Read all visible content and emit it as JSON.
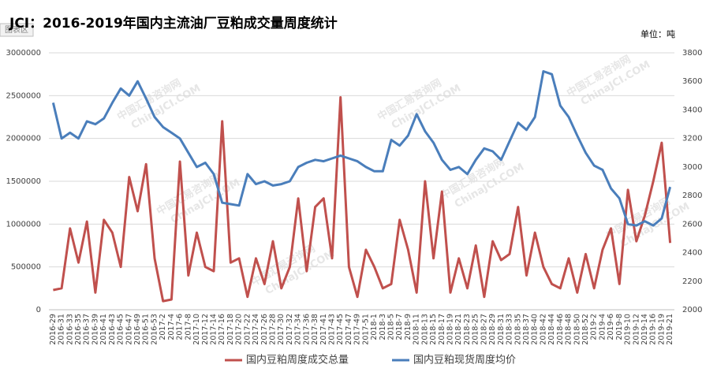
{
  "chart_data": {
    "type": "line",
    "title": "JCI：2016-2019年国内主流油厂豆粕成交量周度统计",
    "unit": "单位：吨",
    "area_tag": "图表区",
    "watermark": [
      "中国汇易咨询网",
      "ChinaJCI.COM"
    ],
    "categories": [
      "2016-29",
      "2016-31",
      "2016-33",
      "2016-35",
      "2016-37",
      "2016-39",
      "2016-41",
      "2016-43",
      "2016-45",
      "2016-47",
      "2016-49",
      "2016-51",
      "2016-53",
      "2017-2",
      "2017-4",
      "2017-6",
      "2017-8",
      "2017-10",
      "2017-12",
      "2017-14",
      "2017-16",
      "2017-18",
      "2017-20",
      "2017-22",
      "2017-24",
      "2017-26",
      "2017-28",
      "2017-30",
      "2017-32",
      "2017-34",
      "2017-36",
      "2017-38",
      "2017-41",
      "2017-43",
      "2017-45",
      "2017-47",
      "2017-49",
      "2017-51",
      "2018-1",
      "2018-3",
      "2018-5",
      "2018-7",
      "2018-9",
      "2018-11",
      "2018-13",
      "2018-15",
      "2018-17",
      "2018-19",
      "2018-21",
      "2018-23",
      "2018-25",
      "2018-27",
      "2018-29",
      "2018-31",
      "2018-33",
      "2018-35",
      "2018-37",
      "2018-40",
      "2018-42",
      "2018-44",
      "2018-46",
      "2018-48",
      "2018-50",
      "2018-52",
      "2019-2",
      "2019-4",
      "2019-6",
      "2019-8",
      "2019-10",
      "2019-12",
      "2019-14",
      "2019-16",
      "2019-19",
      "2019-21"
    ],
    "series": [
      {
        "name": "国内豆粕周度成交总量",
        "color": "#c0504d",
        "axis": "y",
        "values": [
          230000,
          250000,
          950000,
          550000,
          1030000,
          200000,
          1050000,
          900000,
          500000,
          1550000,
          1150000,
          1700000,
          600000,
          100000,
          120000,
          1730000,
          400000,
          900000,
          500000,
          450000,
          2200000,
          550000,
          600000,
          150000,
          600000,
          300000,
          800000,
          250000,
          500000,
          1300000,
          450000,
          1200000,
          1300000,
          600000,
          2480000,
          500000,
          150000,
          700000,
          500000,
          250000,
          300000,
          1050000,
          700000,
          200000,
          1500000,
          600000,
          1380000,
          200000,
          600000,
          250000,
          750000,
          150000,
          800000,
          580000,
          650000,
          1200000,
          400000,
          900000,
          500000,
          300000,
          250000,
          600000,
          200000,
          650000,
          250000,
          700000,
          950000,
          300000,
          1400000,
          800000,
          1100000,
          1500000,
          1950000,
          780000
        ]
      },
      {
        "name": "国内豆粕现货周度均价",
        "color": "#4a7ebb",
        "axis": "y2",
        "values": [
          3450,
          3200,
          3240,
          3200,
          3320,
          3300,
          3340,
          3450,
          3550,
          3500,
          3600,
          3480,
          3350,
          3280,
          3240,
          3200,
          3100,
          3000,
          3030,
          2950,
          2750,
          2740,
          2730,
          2950,
          2880,
          2900,
          2870,
          2880,
          2900,
          3000,
          3030,
          3050,
          3040,
          3060,
          3080,
          3060,
          3040,
          3000,
          2970,
          2970,
          3190,
          3150,
          3220,
          3370,
          3250,
          3170,
          3050,
          2980,
          3000,
          2950,
          3050,
          3130,
          3110,
          3050,
          3180,
          3310,
          3260,
          3350,
          3670,
          3650,
          3430,
          3350,
          3220,
          3100,
          3010,
          2980,
          2850,
          2780,
          2600,
          2590,
          2620,
          2590,
          2640,
          2860
        ]
      }
    ],
    "ylim": [
      0,
      3000000
    ],
    "yticks": [
      0,
      500000,
      1000000,
      1500000,
      2000000,
      2500000,
      3000000
    ],
    "y2lim": [
      2000,
      3800
    ],
    "y2ticks": [
      2000,
      2200,
      2400,
      2600,
      2800,
      3000,
      3200,
      3400,
      3600,
      3800
    ],
    "grid": true,
    "legend": "bottom"
  }
}
